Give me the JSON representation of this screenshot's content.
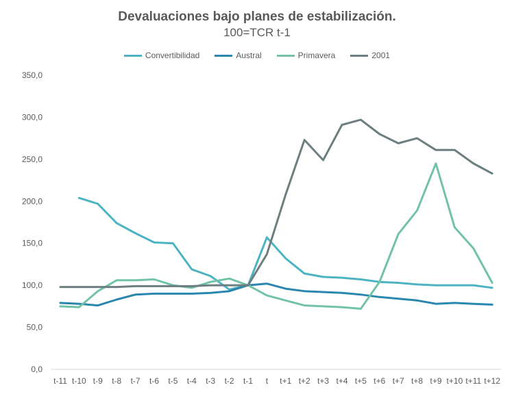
{
  "chart_data": {
    "type": "line",
    "title": "Devaluaciones bajo planes de estabilización.",
    "subtitle": "100=TCR t-1",
    "xlabel": "",
    "ylabel": "",
    "ylim": [
      0,
      350
    ],
    "yticks": [
      "0,0",
      "50,0",
      "100,0",
      "150,0",
      "200,0",
      "250,0",
      "300,0",
      "350,0"
    ],
    "categories": [
      "t-11",
      "t-10",
      "t-9",
      "t-8",
      "t-7",
      "t-6",
      "t-5",
      "t-4",
      "t-3",
      "t-2",
      "t-1",
      "t",
      "t+1",
      "t+2",
      "t+3",
      "t+4",
      "t+5",
      "t+6",
      "t+7",
      "t+8",
      "t+9",
      "t+10",
      "t+11",
      "t+12"
    ],
    "grid": false,
    "legend_position": "top",
    "series": [
      {
        "name": "Convertibilidad",
        "color": "#4bb3c1",
        "values": [
          null,
          204,
          197,
          174,
          162,
          151,
          150,
          119,
          111,
          95,
          100,
          157,
          132,
          114,
          110,
          109,
          107,
          104,
          103,
          101,
          100,
          100,
          100,
          97
        ]
      },
      {
        "name": "Austral",
        "color": "#2a86ad",
        "values": [
          79,
          78,
          76,
          83,
          89,
          90,
          90,
          90,
          91,
          93,
          100,
          102,
          96,
          93,
          92,
          91,
          89,
          86,
          84,
          82,
          78,
          79,
          78,
          77
        ]
      },
      {
        "name": "Primavera",
        "color": "#72c2a5",
        "values": [
          75,
          74,
          93,
          106,
          106,
          107,
          100,
          97,
          104,
          108,
          100,
          88,
          82,
          76,
          75,
          74,
          72,
          104,
          161,
          189,
          245,
          169,
          144,
          103
        ]
      },
      {
        "name": "2001",
        "color": "#6d7e80",
        "values": [
          98,
          98,
          98,
          98,
          99,
          99,
          99,
          99,
          100,
          100,
          100,
          137,
          208,
          273,
          249,
          291,
          297,
          280,
          269,
          275,
          261,
          261,
          245,
          233
        ]
      }
    ]
  }
}
